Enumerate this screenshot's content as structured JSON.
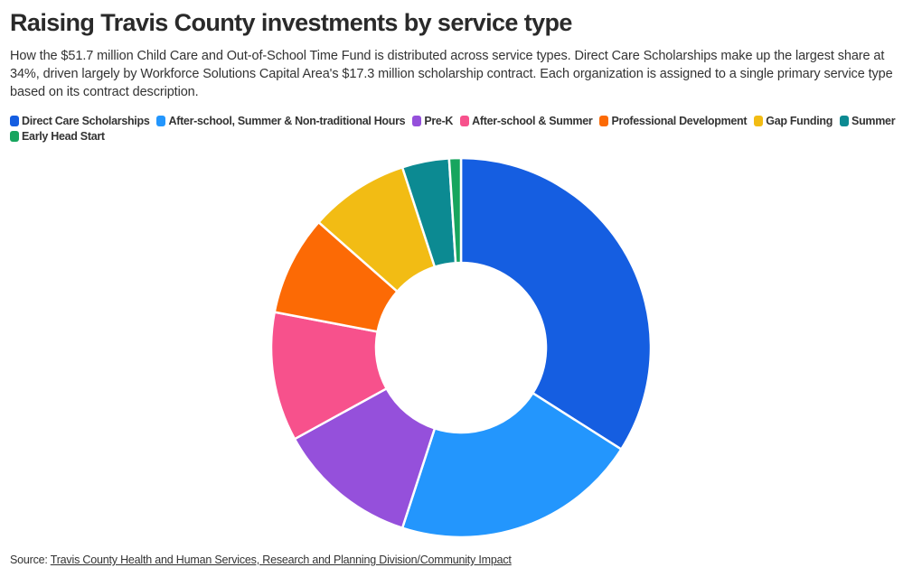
{
  "header": {
    "title": "Raising Travis County investments by service type",
    "subtitle": "How the $51.7 million Child Care and Out-of-School Time Fund is distributed across service types. Direct Care Scholarships make up the largest share at 34%, driven largely by Workforce Solutions Capital Area's $17.3 million scholarship contract. Each organization is assigned to a single primary service type based on its contract description."
  },
  "footer": {
    "source_label": "Source:",
    "source_link": "Travis County Health and Human Services, Research and Planning Division/Community Impact"
  },
  "chart_data": {
    "type": "pie",
    "donut": true,
    "legend_position": "top-left",
    "series": [
      {
        "name": "Direct Care Scholarships",
        "value": 34.0,
        "color": "#155EE1"
      },
      {
        "name": "After-school, Summer & Non-traditional Hours",
        "value": 21.0,
        "color": "#2396FD"
      },
      {
        "name": "Pre-K",
        "value": 12.0,
        "color": "#9550DB"
      },
      {
        "name": "After-school & Summer",
        "value": 11.0,
        "color": "#F7518C"
      },
      {
        "name": "Professional Development",
        "value": 8.5,
        "color": "#FC6A05"
      },
      {
        "name": "Gap Funding",
        "value": 8.5,
        "color": "#F2BC14"
      },
      {
        "name": "Summer",
        "value": 4.0,
        "color": "#0C8A92"
      },
      {
        "name": "Early Head Start",
        "value": 1.0,
        "color": "#17A55E"
      }
    ]
  }
}
